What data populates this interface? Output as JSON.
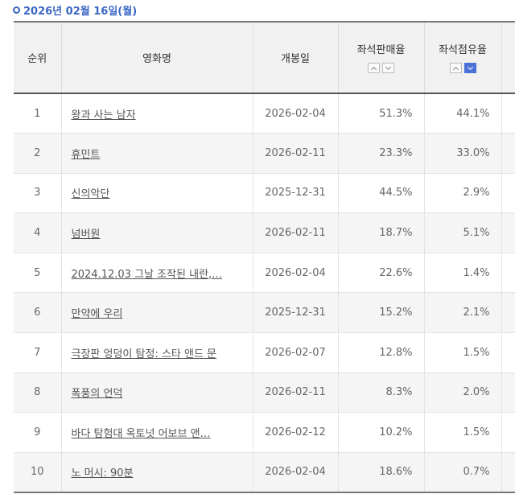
{
  "date_header": "2026년 02월 16일(월)",
  "columns": {
    "rank": "순위",
    "title": "영화명",
    "release": "개봉일",
    "sales_rate": "좌석판매율",
    "share_rate": "좌석점유율"
  },
  "sort_icons": [
    "chevron-up-icon",
    "chevron-down-icon"
  ],
  "active_sort_color": "#4b73d6",
  "rows": [
    {
      "rank": "1",
      "title": "왕과 사는 남자",
      "release": "2026-02-04",
      "sales_rate": "51.3%",
      "share_rate": "44.1%"
    },
    {
      "rank": "2",
      "title": "휴민트",
      "release": "2026-02-11",
      "sales_rate": "23.3%",
      "share_rate": "33.0%"
    },
    {
      "rank": "3",
      "title": "신의악단",
      "release": "2025-12-31",
      "sales_rate": "44.5%",
      "share_rate": "2.9%"
    },
    {
      "rank": "4",
      "title": "넘버원",
      "release": "2026-02-11",
      "sales_rate": "18.7%",
      "share_rate": "5.1%"
    },
    {
      "rank": "5",
      "title": "2024.12.03 그날 조작된 내란,…",
      "release": "2026-02-04",
      "sales_rate": "22.6%",
      "share_rate": "1.4%"
    },
    {
      "rank": "6",
      "title": "만약에 우리",
      "release": "2025-12-31",
      "sales_rate": "15.2%",
      "share_rate": "2.1%"
    },
    {
      "rank": "7",
      "title": "극장판 엉덩이 탐정: 스타 앤드 문",
      "release": "2026-02-07",
      "sales_rate": "12.8%",
      "share_rate": "1.5%"
    },
    {
      "rank": "8",
      "title": "폭풍의 언덕",
      "release": "2026-02-11",
      "sales_rate": "8.3%",
      "share_rate": "2.0%"
    },
    {
      "rank": "9",
      "title": "바다 탐험대 옥토넛 어보브 앤…",
      "release": "2026-02-12",
      "sales_rate": "10.2%",
      "share_rate": "1.5%"
    },
    {
      "rank": "10",
      "title": "노 머시: 90분",
      "release": "2026-02-04",
      "sales_rate": "18.6%",
      "share_rate": "0.7%"
    }
  ]
}
